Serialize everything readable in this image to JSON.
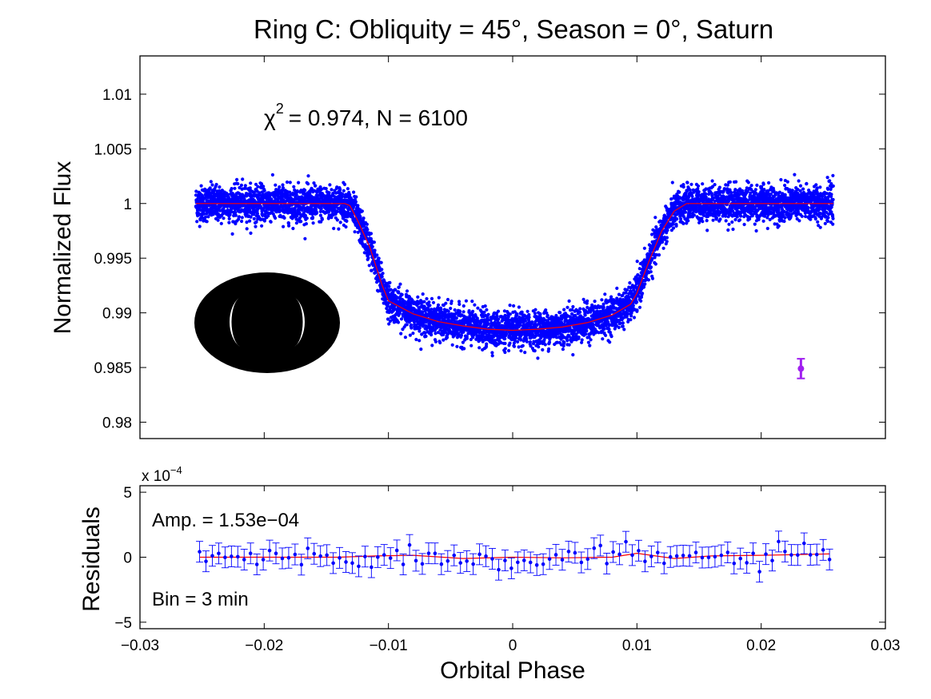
{
  "chart_data": [
    {
      "type": "scatter",
      "title": "Ring C: Obliquity = 45°, Season = 0°, Saturn",
      "xlabel": "",
      "ylabel": "Normalized Flux",
      "xlim": [
        -0.03,
        0.03
      ],
      "ylim": [
        0.9785,
        1.0135
      ],
      "xticks": [
        -0.03,
        -0.02,
        -0.01,
        0,
        0.01,
        0.02,
        0.03
      ],
      "yticks": [
        "0.98",
        "0.985",
        "0.99",
        "0.995",
        "1",
        "1.005",
        "1.01"
      ],
      "ytick_values": [
        0.98,
        0.985,
        0.99,
        0.995,
        1.0,
        1.005,
        1.01
      ],
      "annotation": {
        "chi_symbol": "χ",
        "chi_exponent": "2",
        "text": "= 0.974, N = 6100"
      },
      "series": [
        {
          "name": "Simulated photometry",
          "color": "#0000ff",
          "points": 6100,
          "phase_range": [
            -0.0255,
            0.0258
          ],
          "scatter_sigma": 0.0008
        },
        {
          "name": "Model light curve",
          "color": "#ff0000",
          "x": [
            -0.0255,
            -0.0135,
            -0.0131,
            -0.0125,
            -0.0115,
            -0.0105,
            -0.01,
            -0.008,
            -0.006,
            -0.004,
            -0.002,
            0,
            0.001,
            0.002,
            0.004,
            0.006,
            0.008,
            0.0095,
            0.01,
            0.011,
            0.012,
            0.013,
            0.014,
            0.0258
          ],
          "y": [
            1.0,
            1.0,
            0.9998,
            0.9985,
            0.996,
            0.9925,
            0.9911,
            0.9899,
            0.9892,
            0.9888,
            0.9885,
            0.9884,
            0.98845,
            0.9885,
            0.9887,
            0.9891,
            0.9898,
            0.9908,
            0.9918,
            0.9948,
            0.9975,
            0.9993,
            1.0,
            1.0
          ]
        },
        {
          "name": "Typical error bar",
          "color": "#a020f0",
          "x": 0.0232,
          "y": 0.9849,
          "yerr": 0.0009
        }
      ],
      "inset": "planet-with-rings-silhouette"
    },
    {
      "type": "scatter",
      "title": "",
      "xlabel": "Orbital Phase",
      "ylabel": "Residuals",
      "exponent_label": "x 10",
      "exponent_power": "−4",
      "xlim": [
        -0.03,
        0.03
      ],
      "ylim": [
        -5.5,
        5.5
      ],
      "xticks": [
        -0.03,
        -0.02,
        -0.01,
        0,
        0.01,
        0.02,
        0.03
      ],
      "xtick_labels": [
        "−0.03",
        "−0.02",
        "−0.01",
        "0",
        "0.01",
        "0.02",
        "0.03"
      ],
      "yticks": [
        5,
        0,
        -5
      ],
      "ytick_labels": [
        "5",
        "0",
        "−5"
      ],
      "amp_label": "Amp. = 1.53e−04",
      "bin_label": "Bin = 3 min",
      "series": [
        {
          "name": "Binned residuals",
          "color": "#0000ff",
          "bins": 100,
          "phase_range": [
            -0.0252,
            0.0255
          ],
          "yerr": 0.8
        },
        {
          "name": "Residual trend",
          "color": "#ff0000",
          "x": [
            -0.0252,
            -0.014,
            -0.011,
            -0.008,
            -0.004,
            0,
            0.004,
            0.008,
            0.01,
            0.013,
            0.016,
            0.02,
            0.0255
          ],
          "y": [
            0.0,
            0.0,
            0.1,
            0.15,
            -0.1,
            0.0,
            -0.05,
            0.0,
            0.3,
            -0.1,
            0.1,
            0.15,
            0.25
          ]
        }
      ]
    }
  ]
}
